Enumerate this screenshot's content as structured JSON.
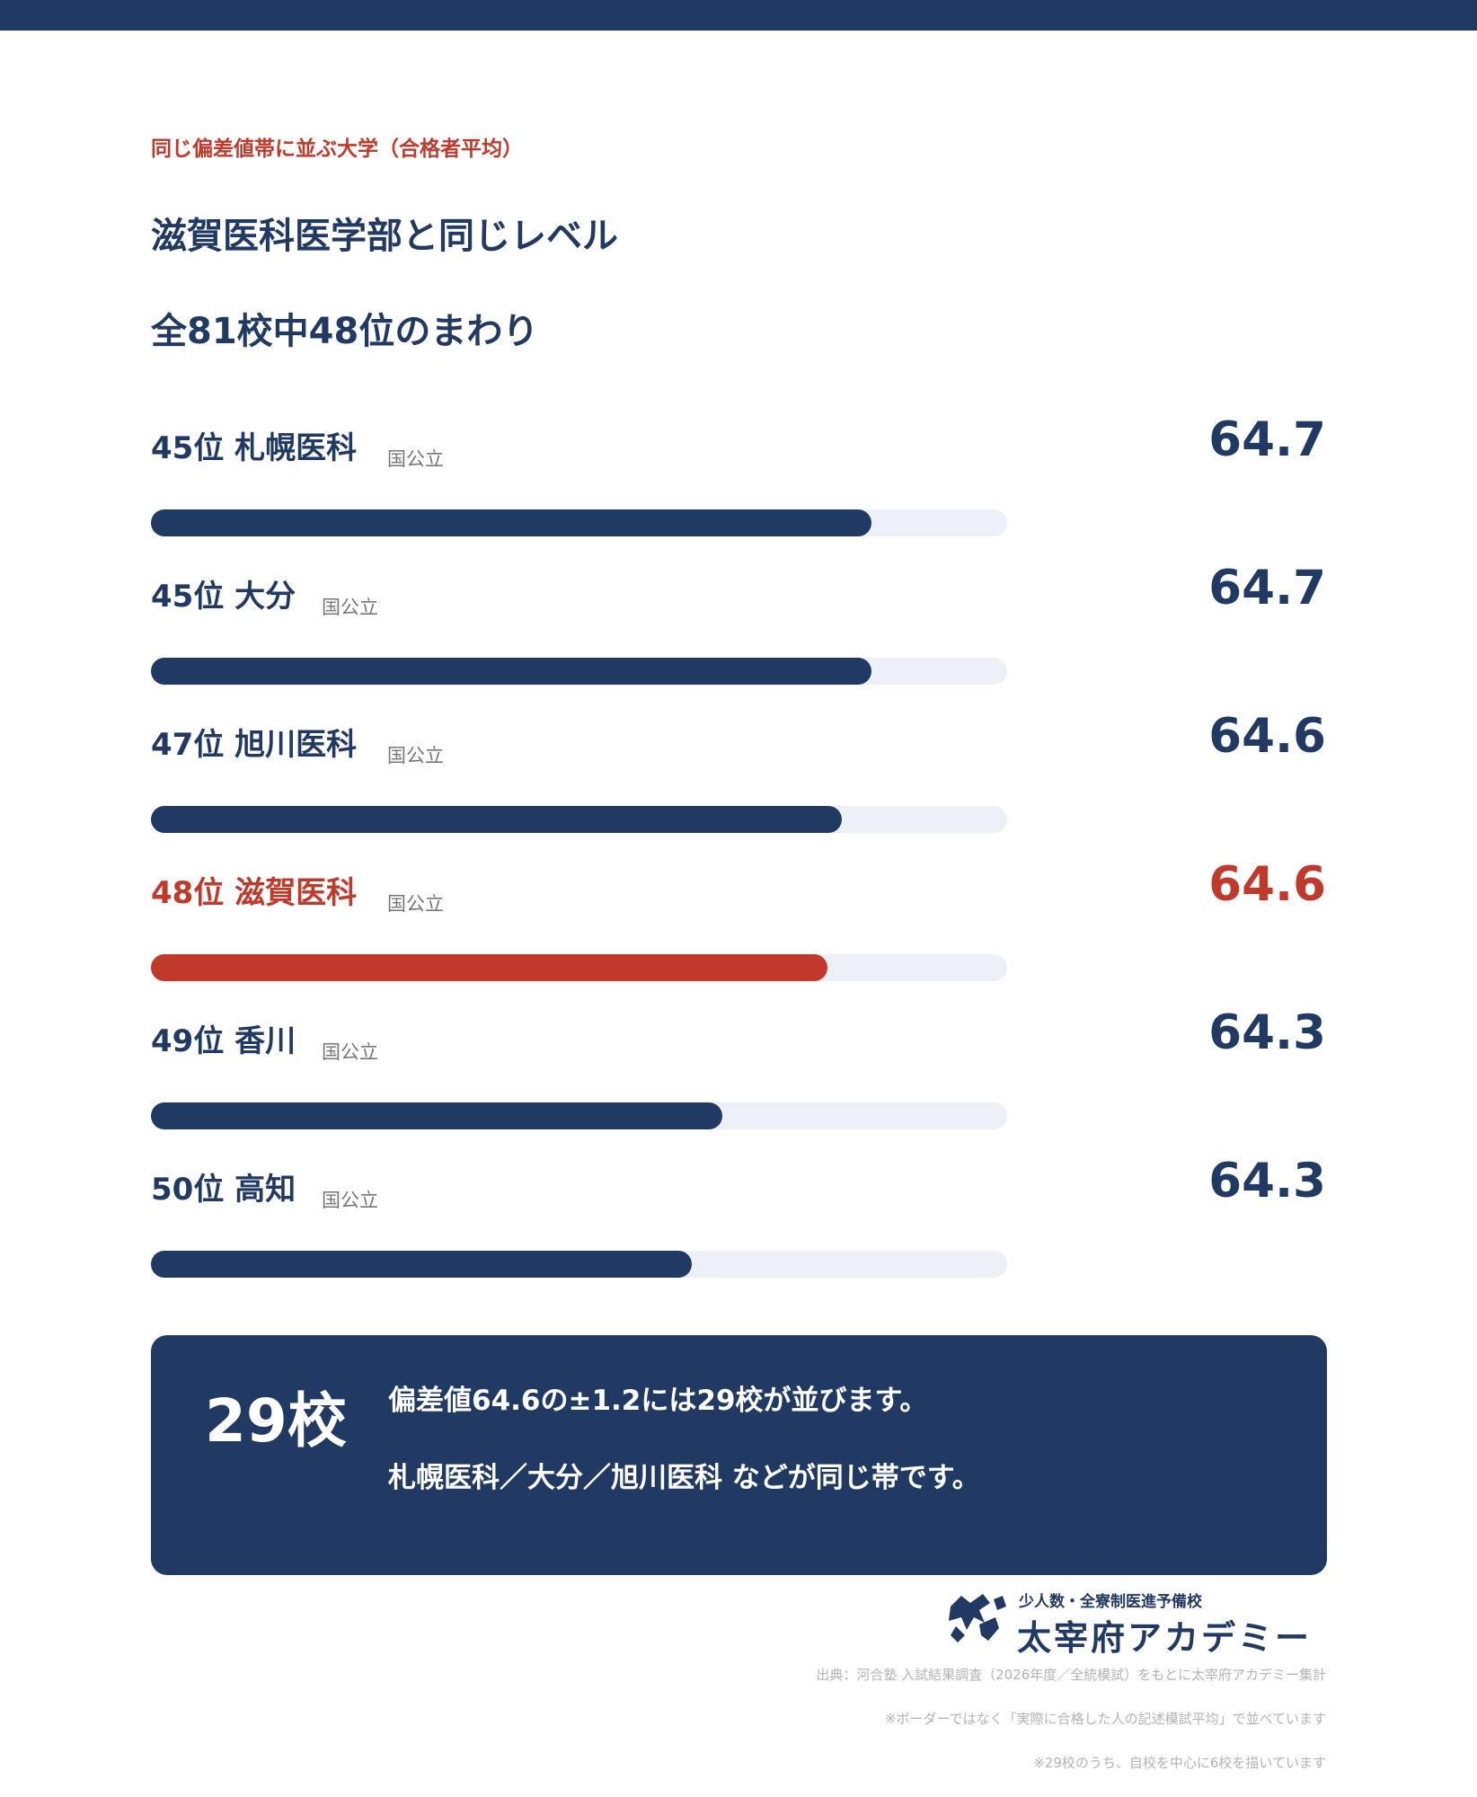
{
  "header": {
    "eyebrow": "同じ偏差値帯に並ぶ大学（合格者平均）",
    "title_line1": "滋賀医科医学部と同じレベル",
    "title_line2": "全81校中48位のまわり"
  },
  "chart_data": {
    "type": "bar",
    "orientation": "horizontal",
    "rows": [
      {
        "rank_label": "45位 札幌医科",
        "type": "国公立",
        "value": 64.7,
        "value_label": "64.7",
        "highlight": false,
        "fill": 0.842
      },
      {
        "rank_label": "45位 大分",
        "type": "国公立",
        "value": 64.7,
        "value_label": "64.7",
        "highlight": false,
        "fill": 0.842
      },
      {
        "rank_label": "47位 旭川医科",
        "type": "国公立",
        "value": 64.6,
        "value_label": "64.6",
        "highlight": false,
        "fill": 0.807
      },
      {
        "rank_label": "48位 滋賀医科",
        "type": "国公立",
        "value": 64.6,
        "value_label": "64.6",
        "highlight": true,
        "fill": 0.79
      },
      {
        "rank_label": "49位 香川",
        "type": "国公立",
        "value": 64.3,
        "value_label": "64.3",
        "highlight": false,
        "fill": 0.667
      },
      {
        "rank_label": "50位 高知",
        "type": "国公立",
        "value": 64.3,
        "value_label": "64.3",
        "highlight": false,
        "fill": 0.632
      }
    ],
    "colors": {
      "bar": "#213a63",
      "highlight": "#c0392b",
      "track": "#edf0f6"
    }
  },
  "summary": {
    "count": "29校",
    "line1": "偏差値64.6の±1.2には29校が並びます。",
    "line2": "札幌医科／大分／旭川医科 などが同じ帯です。"
  },
  "logo": {
    "subtitle": "少人数・全寮制医進予備校",
    "name": "太宰府アカデミー"
  },
  "notes": {
    "source": "出典：河合塾 入試結果調査（2026年度／全統模試）をもとに太宰府アカデミー集計",
    "note1": "※ボーダーではなく「実際に合格した人の記述模試平均」で並べています",
    "note2": "※29校のうち、自校を中心に6校を描いています"
  },
  "colors": {
    "navy": "#213a63",
    "accent_red": "#c0392b"
  }
}
